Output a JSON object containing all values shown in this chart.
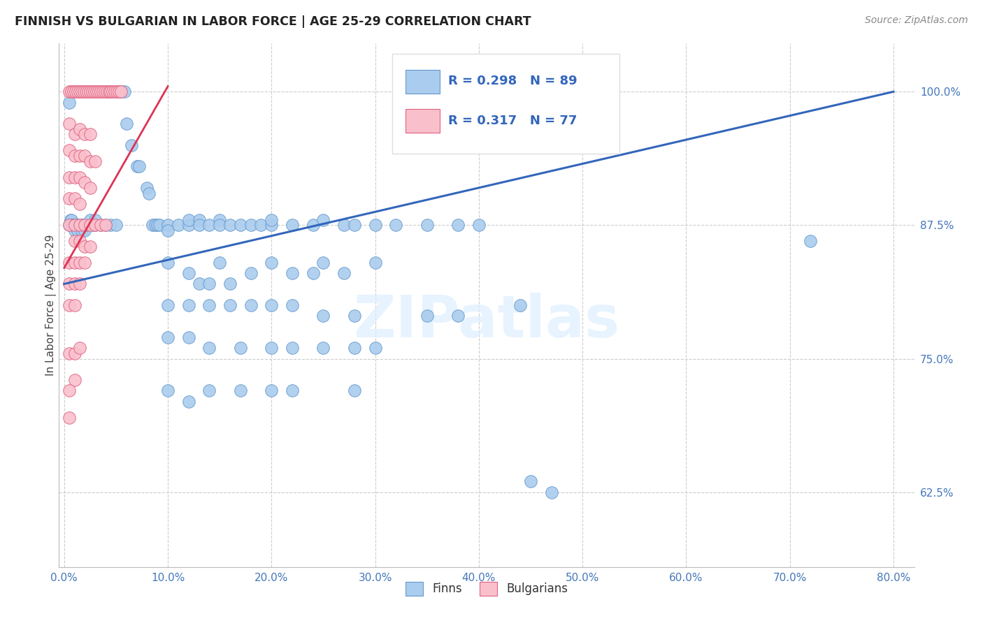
{
  "title": "FINNISH VS BULGARIAN IN LABOR FORCE | AGE 25-29 CORRELATION CHART",
  "source": "Source: ZipAtlas.com",
  "ylabel": "In Labor Force | Age 25-29",
  "xlabel_ticks": [
    "0.0%",
    "10.0%",
    "20.0%",
    "30.0%",
    "40.0%",
    "50.0%",
    "60.0%",
    "70.0%",
    "80.0%"
  ],
  "ylabel_ticks": [
    "62.5%",
    "75.0%",
    "87.5%",
    "100.0%"
  ],
  "x_tick_vals": [
    0.0,
    0.1,
    0.2,
    0.3,
    0.4,
    0.5,
    0.6,
    0.7,
    0.8
  ],
  "y_tick_vals": [
    0.625,
    0.75,
    0.875,
    1.0
  ],
  "xlim": [
    -0.005,
    0.82
  ],
  "ylim": [
    0.555,
    1.045
  ],
  "blue_R": 0.298,
  "blue_N": 89,
  "pink_R": 0.317,
  "pink_N": 77,
  "blue_color": "#aaccee",
  "pink_color": "#f9c0cc",
  "blue_edge_color": "#6699cc",
  "pink_edge_color": "#e06080",
  "blue_line_color": "#3366bb",
  "pink_line_color": "#dd3355",
  "watermark": "ZIPatlas",
  "legend_label_blue": "Finns",
  "legend_label_pink": "Bulgarians",
  "blue_scatter": [
    [
      0.005,
      0.99
    ],
    [
      0.005,
      0.875
    ],
    [
      0.006,
      0.88
    ],
    [
      0.007,
      0.88
    ],
    [
      0.007,
      0.875
    ],
    [
      0.008,
      0.875
    ],
    [
      0.009,
      0.875
    ],
    [
      0.01,
      0.875
    ],
    [
      0.01,
      0.87
    ],
    [
      0.011,
      0.875
    ],
    [
      0.012,
      0.875
    ],
    [
      0.013,
      0.875
    ],
    [
      0.013,
      0.87
    ],
    [
      0.014,
      0.875
    ],
    [
      0.015,
      0.875
    ],
    [
      0.016,
      0.875
    ],
    [
      0.017,
      0.87
    ],
    [
      0.018,
      0.875
    ],
    [
      0.019,
      0.875
    ],
    [
      0.02,
      0.875
    ],
    [
      0.02,
      0.87
    ],
    [
      0.022,
      0.875
    ],
    [
      0.025,
      0.88
    ],
    [
      0.028,
      0.875
    ],
    [
      0.03,
      0.875
    ],
    [
      0.03,
      0.88
    ],
    [
      0.035,
      0.875
    ],
    [
      0.04,
      0.875
    ],
    [
      0.045,
      0.875
    ],
    [
      0.05,
      0.875
    ],
    [
      0.055,
      1.0
    ],
    [
      0.058,
      1.0
    ],
    [
      0.06,
      0.97
    ],
    [
      0.065,
      0.95
    ],
    [
      0.07,
      0.93
    ],
    [
      0.072,
      0.93
    ],
    [
      0.08,
      0.91
    ],
    [
      0.082,
      0.905
    ],
    [
      0.085,
      0.875
    ],
    [
      0.088,
      0.875
    ],
    [
      0.09,
      0.875
    ],
    [
      0.092,
      0.875
    ],
    [
      0.1,
      0.875
    ],
    [
      0.1,
      0.87
    ],
    [
      0.11,
      0.875
    ],
    [
      0.12,
      0.875
    ],
    [
      0.12,
      0.88
    ],
    [
      0.13,
      0.88
    ],
    [
      0.13,
      0.875
    ],
    [
      0.14,
      0.875
    ],
    [
      0.15,
      0.88
    ],
    [
      0.15,
      0.875
    ],
    [
      0.16,
      0.875
    ],
    [
      0.17,
      0.875
    ],
    [
      0.18,
      0.875
    ],
    [
      0.19,
      0.875
    ],
    [
      0.2,
      0.875
    ],
    [
      0.2,
      0.88
    ],
    [
      0.22,
      0.875
    ],
    [
      0.24,
      0.875
    ],
    [
      0.25,
      0.88
    ],
    [
      0.27,
      0.875
    ],
    [
      0.28,
      0.875
    ],
    [
      0.3,
      0.875
    ],
    [
      0.32,
      0.875
    ],
    [
      0.35,
      0.875
    ],
    [
      0.38,
      0.875
    ],
    [
      0.4,
      0.875
    ],
    [
      0.1,
      0.84
    ],
    [
      0.12,
      0.83
    ],
    [
      0.13,
      0.82
    ],
    [
      0.14,
      0.82
    ],
    [
      0.15,
      0.84
    ],
    [
      0.16,
      0.82
    ],
    [
      0.18,
      0.83
    ],
    [
      0.2,
      0.84
    ],
    [
      0.22,
      0.83
    ],
    [
      0.24,
      0.83
    ],
    [
      0.25,
      0.84
    ],
    [
      0.27,
      0.83
    ],
    [
      0.3,
      0.84
    ],
    [
      0.1,
      0.8
    ],
    [
      0.12,
      0.8
    ],
    [
      0.14,
      0.8
    ],
    [
      0.16,
      0.8
    ],
    [
      0.18,
      0.8
    ],
    [
      0.2,
      0.8
    ],
    [
      0.22,
      0.8
    ],
    [
      0.25,
      0.79
    ],
    [
      0.28,
      0.79
    ],
    [
      0.35,
      0.79
    ],
    [
      0.38,
      0.79
    ],
    [
      0.1,
      0.77
    ],
    [
      0.12,
      0.77
    ],
    [
      0.14,
      0.76
    ],
    [
      0.17,
      0.76
    ],
    [
      0.2,
      0.76
    ],
    [
      0.22,
      0.76
    ],
    [
      0.25,
      0.76
    ],
    [
      0.28,
      0.76
    ],
    [
      0.3,
      0.76
    ],
    [
      0.1,
      0.72
    ],
    [
      0.12,
      0.71
    ],
    [
      0.14,
      0.72
    ],
    [
      0.17,
      0.72
    ],
    [
      0.2,
      0.72
    ],
    [
      0.22,
      0.72
    ],
    [
      0.28,
      0.72
    ],
    [
      0.44,
      0.8
    ],
    [
      0.45,
      0.635
    ],
    [
      0.47,
      0.625
    ],
    [
      0.72,
      0.86
    ]
  ],
  "pink_scatter": [
    [
      0.005,
      1.0
    ],
    [
      0.007,
      1.0
    ],
    [
      0.009,
      1.0
    ],
    [
      0.011,
      1.0
    ],
    [
      0.013,
      1.0
    ],
    [
      0.015,
      1.0
    ],
    [
      0.017,
      1.0
    ],
    [
      0.019,
      1.0
    ],
    [
      0.021,
      1.0
    ],
    [
      0.023,
      1.0
    ],
    [
      0.025,
      1.0
    ],
    [
      0.027,
      1.0
    ],
    [
      0.029,
      1.0
    ],
    [
      0.031,
      1.0
    ],
    [
      0.033,
      1.0
    ],
    [
      0.035,
      1.0
    ],
    [
      0.037,
      1.0
    ],
    [
      0.039,
      1.0
    ],
    [
      0.041,
      1.0
    ],
    [
      0.043,
      1.0
    ],
    [
      0.045,
      1.0
    ],
    [
      0.047,
      1.0
    ],
    [
      0.049,
      1.0
    ],
    [
      0.051,
      1.0
    ],
    [
      0.053,
      1.0
    ],
    [
      0.055,
      1.0
    ],
    [
      0.005,
      0.97
    ],
    [
      0.01,
      0.96
    ],
    [
      0.015,
      0.965
    ],
    [
      0.02,
      0.96
    ],
    [
      0.025,
      0.96
    ],
    [
      0.005,
      0.945
    ],
    [
      0.01,
      0.94
    ],
    [
      0.015,
      0.94
    ],
    [
      0.02,
      0.94
    ],
    [
      0.025,
      0.935
    ],
    [
      0.03,
      0.935
    ],
    [
      0.005,
      0.92
    ],
    [
      0.01,
      0.92
    ],
    [
      0.015,
      0.92
    ],
    [
      0.02,
      0.915
    ],
    [
      0.025,
      0.91
    ],
    [
      0.005,
      0.9
    ],
    [
      0.01,
      0.9
    ],
    [
      0.015,
      0.895
    ],
    [
      0.005,
      0.875
    ],
    [
      0.01,
      0.875
    ],
    [
      0.015,
      0.875
    ],
    [
      0.02,
      0.875
    ],
    [
      0.025,
      0.875
    ],
    [
      0.03,
      0.875
    ],
    [
      0.035,
      0.875
    ],
    [
      0.04,
      0.875
    ],
    [
      0.01,
      0.86
    ],
    [
      0.015,
      0.86
    ],
    [
      0.02,
      0.855
    ],
    [
      0.025,
      0.855
    ],
    [
      0.005,
      0.84
    ],
    [
      0.01,
      0.84
    ],
    [
      0.015,
      0.84
    ],
    [
      0.02,
      0.84
    ],
    [
      0.005,
      0.82
    ],
    [
      0.01,
      0.82
    ],
    [
      0.015,
      0.82
    ],
    [
      0.005,
      0.8
    ],
    [
      0.01,
      0.8
    ],
    [
      0.005,
      0.755
    ],
    [
      0.01,
      0.755
    ],
    [
      0.015,
      0.76
    ],
    [
      0.01,
      0.73
    ],
    [
      0.005,
      0.72
    ],
    [
      0.005,
      0.695
    ]
  ],
  "blue_trendline_x": [
    0.0,
    0.8
  ],
  "blue_trendline_y": [
    0.82,
    1.0
  ],
  "pink_trendline_x": [
    0.0,
    0.1
  ],
  "pink_trendline_y": [
    0.835,
    1.005
  ]
}
